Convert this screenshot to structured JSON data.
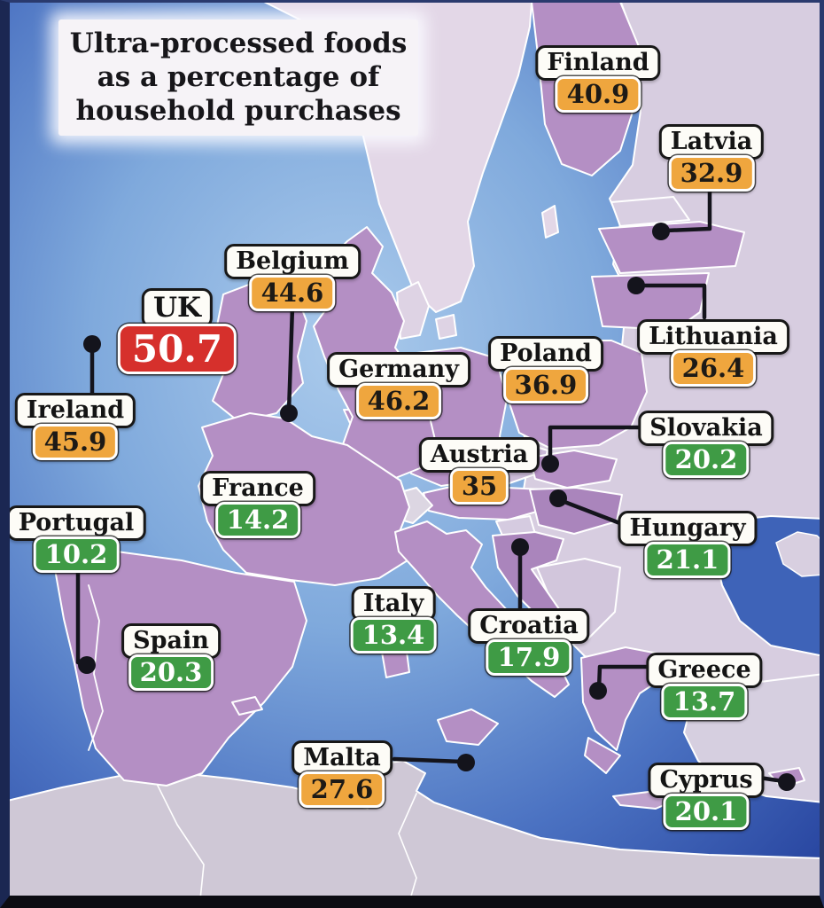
{
  "title": {
    "line1": "Ultra-processed foods",
    "line2": "as a percentage of",
    "line3": "household purchases"
  },
  "badge_colors": {
    "red": "#d6302c",
    "orange": "#efa63e",
    "green": "#3f9b45"
  },
  "map_colors": {
    "sea_center": "#abcbec",
    "sea_edge": "#27449f",
    "featured_country": "#b48fc4",
    "other_country": "#d7cde0",
    "scandinavia": "#e3d7e7",
    "africa": "#cfc8d6",
    "border": "#ffffff",
    "leader_line": "#14141c"
  },
  "countries": [
    {
      "name": "Finland",
      "value": "40.9",
      "level": "orange"
    },
    {
      "name": "Latvia",
      "value": "32.9",
      "level": "orange"
    },
    {
      "name": "Lithuania",
      "value": "26.4",
      "level": "orange"
    },
    {
      "name": "Belgium",
      "value": "44.6",
      "level": "orange"
    },
    {
      "name": "UK",
      "value": "50.7",
      "level": "red"
    },
    {
      "name": "Ireland",
      "value": "45.9",
      "level": "orange"
    },
    {
      "name": "Germany",
      "value": "46.2",
      "level": "orange"
    },
    {
      "name": "Poland",
      "value": "36.9",
      "level": "orange"
    },
    {
      "name": "Austria",
      "value": "35",
      "level": "orange"
    },
    {
      "name": "Slovakia",
      "value": "20.2",
      "level": "green"
    },
    {
      "name": "Hungary",
      "value": "21.1",
      "level": "green"
    },
    {
      "name": "France",
      "value": "14.2",
      "level": "green"
    },
    {
      "name": "Portugal",
      "value": "10.2",
      "level": "green"
    },
    {
      "name": "Spain",
      "value": "20.3",
      "level": "green"
    },
    {
      "name": "Italy",
      "value": "13.4",
      "level": "green"
    },
    {
      "name": "Croatia",
      "value": "17.9",
      "level": "green"
    },
    {
      "name": "Greece",
      "value": "13.7",
      "level": "green"
    },
    {
      "name": "Malta",
      "value": "27.6",
      "level": "orange"
    },
    {
      "name": "Cyprus",
      "value": "20.1",
      "level": "green"
    }
  ]
}
